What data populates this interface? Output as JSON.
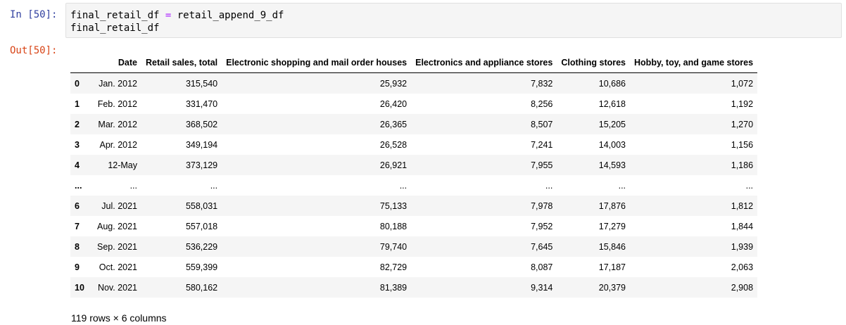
{
  "in_prompt": "In [50]:",
  "out_prompt": "Out[50]:",
  "code": {
    "line1_var": "final_retail_df",
    "line1_op": "=",
    "line1_rhs": "retail_append_9_df",
    "line2": "final_retail_df"
  },
  "table": {
    "columns": [
      "Date",
      "Retail sales, total",
      "Electronic shopping and mail order houses",
      "Electronics and appliance stores",
      "Clothing stores",
      "Hobby, toy, and game stores"
    ],
    "rows": [
      {
        "index": "0",
        "cells": [
          "Jan. 2012",
          "315,540",
          "25,932",
          "7,832",
          "10,686",
          "1,072"
        ]
      },
      {
        "index": "1",
        "cells": [
          "Feb. 2012",
          "331,470",
          "26,420",
          "8,256",
          "12,618",
          "1,192"
        ]
      },
      {
        "index": "2",
        "cells": [
          "Mar. 2012",
          "368,502",
          "26,365",
          "8,507",
          "15,205",
          "1,270"
        ]
      },
      {
        "index": "3",
        "cells": [
          "Apr. 2012",
          "349,194",
          "26,528",
          "7,241",
          "14,003",
          "1,156"
        ]
      },
      {
        "index": "4",
        "cells": [
          "12-May",
          "373,129",
          "26,921",
          "7,955",
          "14,593",
          "1,186"
        ]
      },
      {
        "index": "...",
        "cells": [
          "...",
          "...",
          "...",
          "...",
          "...",
          "..."
        ]
      },
      {
        "index": "6",
        "cells": [
          "Jul. 2021",
          "558,031",
          "75,133",
          "7,978",
          "17,876",
          "1,812"
        ]
      },
      {
        "index": "7",
        "cells": [
          "Aug. 2021",
          "557,018",
          "80,188",
          "7,952",
          "17,279",
          "1,844"
        ]
      },
      {
        "index": "8",
        "cells": [
          "Sep. 2021",
          "536,229",
          "79,740",
          "7,645",
          "15,846",
          "1,939"
        ]
      },
      {
        "index": "9",
        "cells": [
          "Oct. 2021",
          "559,399",
          "82,729",
          "8,087",
          "17,187",
          "2,063"
        ]
      },
      {
        "index": "10",
        "cells": [
          "Nov. 2021",
          "580,162",
          "81,389",
          "9,314",
          "20,379",
          "2,908"
        ]
      }
    ]
  },
  "shape_text": "119 rows × 6 columns"
}
